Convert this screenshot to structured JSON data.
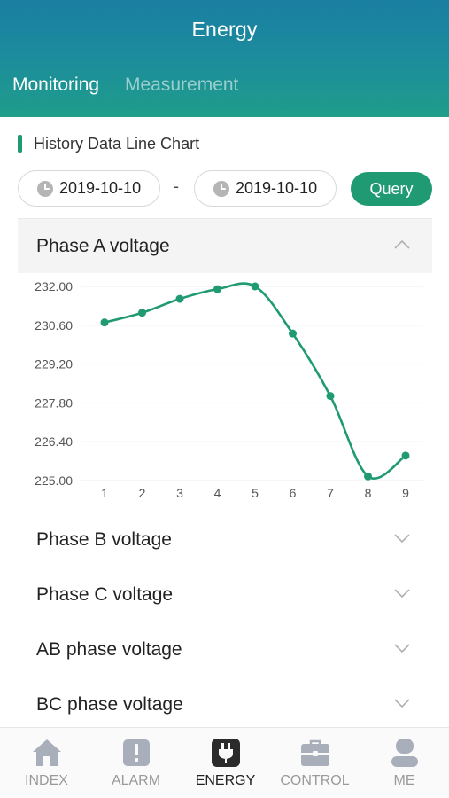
{
  "header": {
    "title": "Energy"
  },
  "tabs": [
    {
      "label": "Monitoring",
      "active": true
    },
    {
      "label": "Measurement",
      "active": false
    }
  ],
  "section": {
    "title": "History Data Line Chart"
  },
  "filter": {
    "start_date": "2019-10-10",
    "separator": "-",
    "end_date": "2019-10-10",
    "query_label": "Query"
  },
  "accordion": {
    "active_item": "Phase A voltage",
    "items": [
      "Phase B voltage",
      "Phase C voltage",
      "AB phase voltage",
      "BC phase voltage"
    ]
  },
  "chart_data": {
    "type": "line",
    "x": [
      1,
      2,
      3,
      4,
      5,
      6,
      7,
      8,
      9
    ],
    "series": [
      {
        "values": [
          230.7,
          231.05,
          231.55,
          231.9,
          232.0,
          230.3,
          228.05,
          225.15,
          225.9
        ]
      }
    ],
    "y_ticks": [
      "232.00",
      "230.60",
      "229.20",
      "227.80",
      "226.40",
      "225.00"
    ],
    "ylim": [
      225.0,
      232.0
    ],
    "grid": true,
    "line_color": "#1f9a72"
  },
  "nav": {
    "items": [
      {
        "label": "INDEX",
        "icon": "home-icon",
        "active": false
      },
      {
        "label": "ALARM",
        "icon": "alarm-icon",
        "active": false
      },
      {
        "label": "ENERGY",
        "icon": "plug-icon",
        "active": true
      },
      {
        "label": "CONTROL",
        "icon": "briefcase-icon",
        "active": false
      },
      {
        "label": "ME",
        "icon": "user-icon",
        "active": false
      }
    ]
  },
  "colors": {
    "accent": "#1f9a72",
    "header_top": "#1a7fa3",
    "header_bottom": "#1f9d8a"
  }
}
